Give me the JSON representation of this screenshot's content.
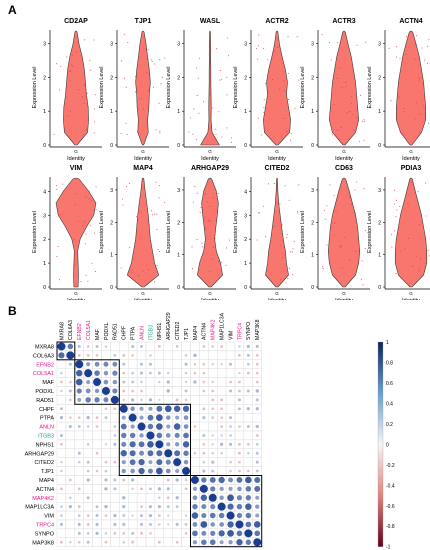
{
  "panel_a_label": "A",
  "panel_b_label": "B",
  "chart_data": [
    {
      "type": "violin",
      "panel": "A",
      "ylabel": "Expression Level",
      "xlabel": "Identity",
      "x_tick": "G",
      "colors": {
        "fill": "#f8766d",
        "outline": "#3a3a3a",
        "points": "#e0303a"
      },
      "plots": [
        {
          "title": "CD2AP",
          "yticks": [
            0,
            1,
            2,
            3
          ],
          "ylim": [
            0,
            3.4
          ]
        },
        {
          "title": "TJP1",
          "yticks": [
            0,
            1,
            2,
            3
          ],
          "ylim": [
            0,
            3.4
          ]
        },
        {
          "title": "WASL",
          "yticks": [
            0,
            1,
            2,
            3
          ],
          "ylim": [
            0,
            3.4
          ]
        },
        {
          "title": "ACTR2",
          "yticks": [
            0,
            1,
            2,
            3
          ],
          "ylim": [
            0,
            3.4
          ]
        },
        {
          "title": "ACTR3",
          "yticks": [
            0,
            1,
            2,
            3
          ],
          "ylim": [
            0,
            3.4
          ]
        },
        {
          "title": "ACTN4",
          "yticks": [
            0,
            1,
            2,
            3
          ],
          "ylim": [
            0,
            3.4
          ]
        },
        {
          "title": "VIM",
          "yticks": [
            0,
            1,
            2,
            3,
            4
          ],
          "ylim": [
            0,
            4.6
          ]
        },
        {
          "title": "MAP4",
          "yticks": [
            0,
            1,
            2,
            3
          ],
          "ylim": [
            0,
            3.4
          ]
        },
        {
          "title": "ARHGAP29",
          "yticks": [
            0,
            1,
            2,
            3
          ],
          "ylim": [
            0,
            3.4
          ]
        },
        {
          "title": "CITED2",
          "yticks": [
            0,
            1,
            2,
            3,
            4
          ],
          "ylim": [
            0,
            4.6
          ]
        },
        {
          "title": "CD63",
          "yticks": [
            0,
            1,
            2,
            3
          ],
          "ylim": [
            0,
            3.4
          ]
        },
        {
          "title": "PDIA3",
          "yticks": [
            0,
            1,
            2,
            3
          ],
          "ylim": [
            0,
            3.4
          ]
        }
      ]
    },
    {
      "type": "heatmap",
      "panel": "B",
      "genes": [
        "MXRA8",
        "COL6A3",
        "EFNB2",
        "COL5A1",
        "MAF",
        "PODXL",
        "RAD51",
        "CHPF",
        "PTPA",
        "ANLN",
        "ITGB3",
        "NPHS1",
        "ARHGAP29",
        "CITED2",
        "TJP1",
        "MAP4",
        "ACTN4",
        "MAP4K2",
        "MAP1LC3A",
        "VIM",
        "TRPC4",
        "SYNPO",
        "MAP3K8"
      ],
      "label_colors": {
        "MXRA8": "#000000",
        "COL6A3": "#000000",
        "EFNB2": "#e8188c",
        "COL5A1": "#e8188c",
        "MAF": "#000000",
        "PODXL": "#000000",
        "RAD51": "#000000",
        "CHPF": "#000000",
        "PTPA": "#000000",
        "ANLN": "#e8188c",
        "ITGB3": "#1aa08a",
        "NPHS1": "#000000",
        "ARHGAP29": "#000000",
        "CITED2": "#000000",
        "TJP1": "#000000",
        "MAP4": "#000000",
        "ACTN4": "#000000",
        "MAP4K2": "#e8188c",
        "MAP1LC3A": "#000000",
        "VIM": "#000000",
        "TRPC4": "#e8188c",
        "SYNPO": "#000000",
        "MAP3K8": "#000000"
      },
      "clusters": [
        [
          0,
          1
        ],
        [
          2,
          6
        ],
        [
          7,
          14
        ],
        [
          15,
          22
        ]
      ],
      "colorbar": {
        "ticks": [
          "1",
          "0.8",
          "0.6",
          "0.4",
          "0.2",
          "0",
          "-0.2",
          "-0.4",
          "-0.6",
          "-0.8",
          "-1"
        ],
        "range": [
          -1,
          1
        ]
      },
      "colors": {
        "positive": "#1a3d8f",
        "negative": "#b2182b",
        "grid": "#d8d8d8",
        "cluster_box": "#000000"
      }
    }
  ]
}
